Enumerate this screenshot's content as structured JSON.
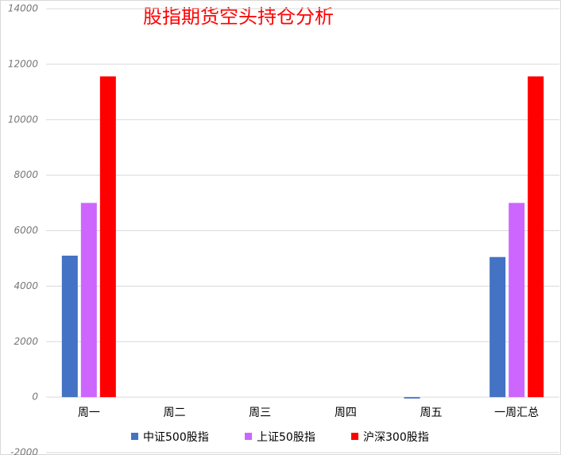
{
  "chart_data": {
    "type": "bar",
    "title": "股指期货空头持仓分析",
    "categories": [
      "周一",
      "周二",
      "周三",
      "周四",
      "周五",
      "一周汇总"
    ],
    "series": [
      {
        "name": "中证500股指",
        "color": "#4472c4",
        "values": [
          5100,
          0,
          0,
          0,
          -50,
          5050
        ]
      },
      {
        "name": "上证50股指",
        "color": "#cc66ff",
        "values": [
          7000,
          0,
          0,
          0,
          0,
          7000
        ]
      },
      {
        "name": "沪深300股指",
        "color": "#ff0000",
        "values": [
          11560,
          0,
          0,
          0,
          0,
          11560
        ]
      }
    ],
    "ylim": [
      -2000,
      14000
    ],
    "yticks": [
      -2000,
      0,
      2000,
      4000,
      6000,
      8000,
      10000,
      12000,
      14000
    ],
    "grid": true,
    "legend": "bottom"
  }
}
